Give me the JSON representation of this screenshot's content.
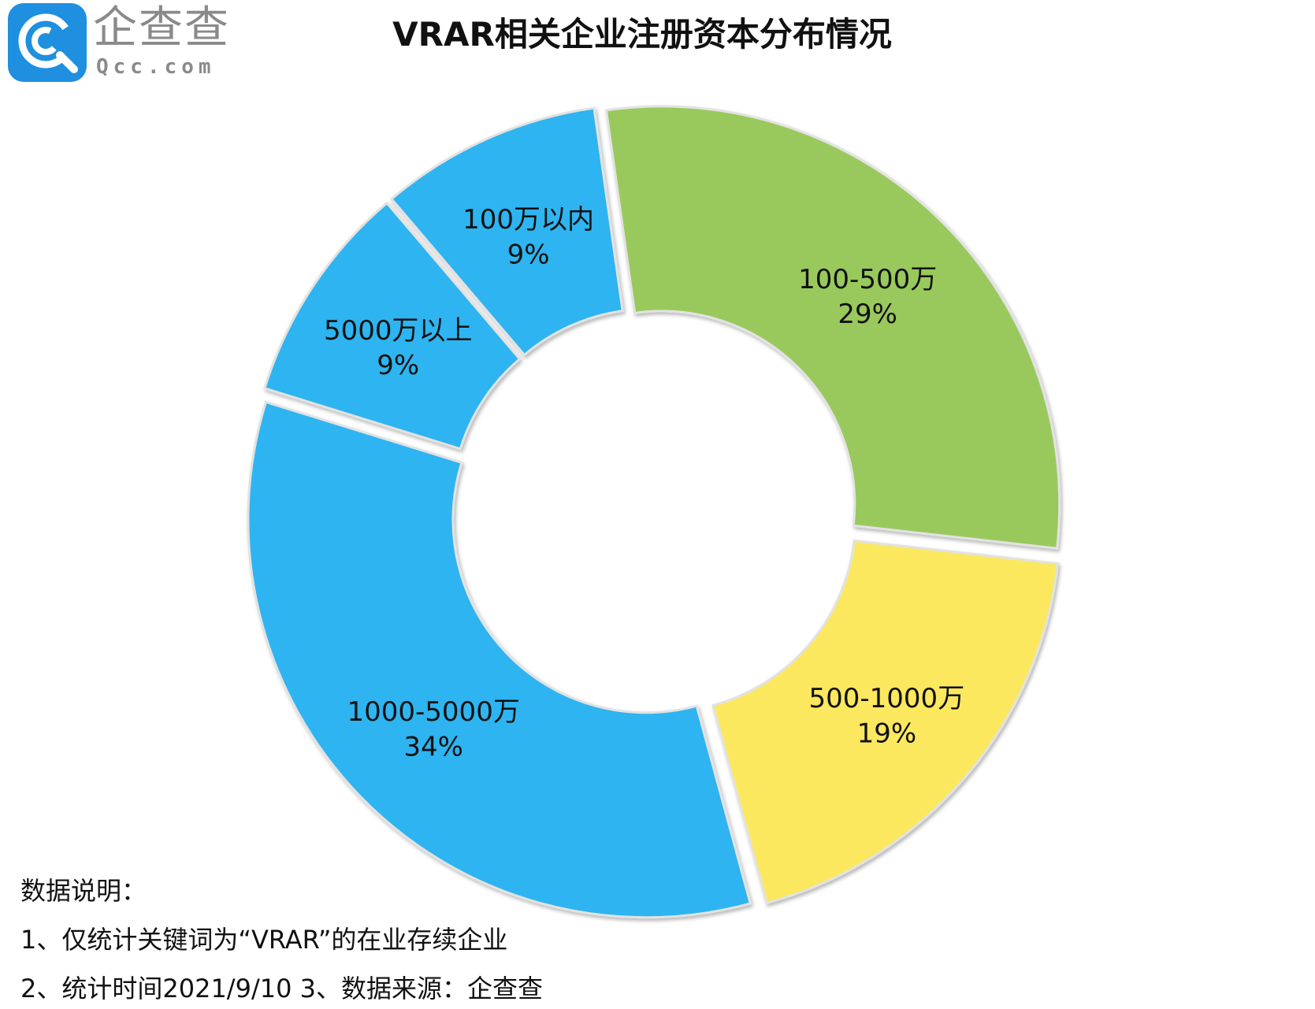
{
  "logo": {
    "brand_cn": "企查查",
    "brand_en": "Qcc.com",
    "mark_color": "#1f8fe0"
  },
  "chart_data": {
    "type": "pie",
    "title": "VRAR相关企业注册资本分布情况",
    "categories": [
      "100-500万",
      "500-1000万",
      "1000-5000万",
      "5000万以上",
      "100万以内"
    ],
    "values": [
      29,
      19,
      34,
      9,
      9
    ],
    "value_labels": [
      "29%",
      "19%",
      "34%",
      "9%",
      "9%"
    ],
    "colors": [
      "#99c95c",
      "#fbe85e",
      "#2db4f0",
      "#2db4f0",
      "#2db4f0"
    ],
    "style": "donut",
    "exploded": true,
    "legend": "none"
  },
  "notes": {
    "heading": "数据说明：",
    "line1": "1、仅统计关键词为“VRAR”的在业存续企业",
    "line2": "2、统计时间2021/9/10   3、数据来源：企查查"
  }
}
